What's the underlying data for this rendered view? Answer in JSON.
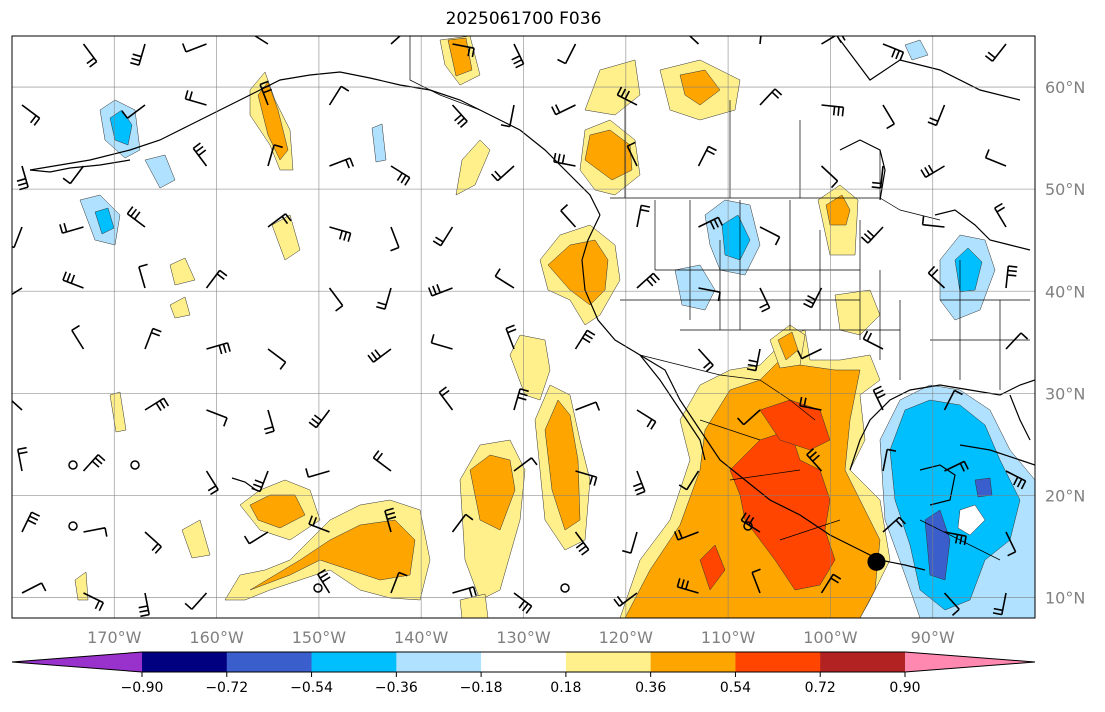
{
  "map": {
    "title": "2025061700 F036",
    "projection": "PlateCarree",
    "extent": {
      "lon_min": -180,
      "lon_max": -80,
      "lat_min": 8,
      "lat_max": 65
    },
    "lat_gridlines": [
      10,
      20,
      30,
      40,
      50,
      60
    ],
    "lon_gridlines": [
      -170,
      -160,
      -150,
      -140,
      -130,
      -120,
      -110,
      -100,
      -90
    ],
    "lat_labels": [
      "10°N",
      "20°N",
      "30°N",
      "40°N",
      "50°N",
      "60°N"
    ],
    "lon_labels": [
      "170°W",
      "160°W",
      "150°W",
      "140°W",
      "130°W",
      "120°W",
      "110°W",
      "100°W",
      "90°W"
    ],
    "tropical_cyclone_marker": {
      "lon": -95.5,
      "lat": 13.5,
      "color": "#000000"
    }
  },
  "colorbar": {
    "orientation": "horizontal",
    "extend": "both",
    "ticks": [
      "−0.90",
      "−0.72",
      "−0.54",
      "−0.36",
      "−0.18",
      "0.18",
      "0.36",
      "0.54",
      "0.72",
      "0.90"
    ],
    "colors": [
      "#9932cc",
      "#000080",
      "#3a5fcd",
      "#00bfff",
      "#b0e2ff",
      "#ffffff",
      "#fff08c",
      "#ffa500",
      "#ff4500",
      "#b22222",
      "#ff88b0"
    ]
  }
}
